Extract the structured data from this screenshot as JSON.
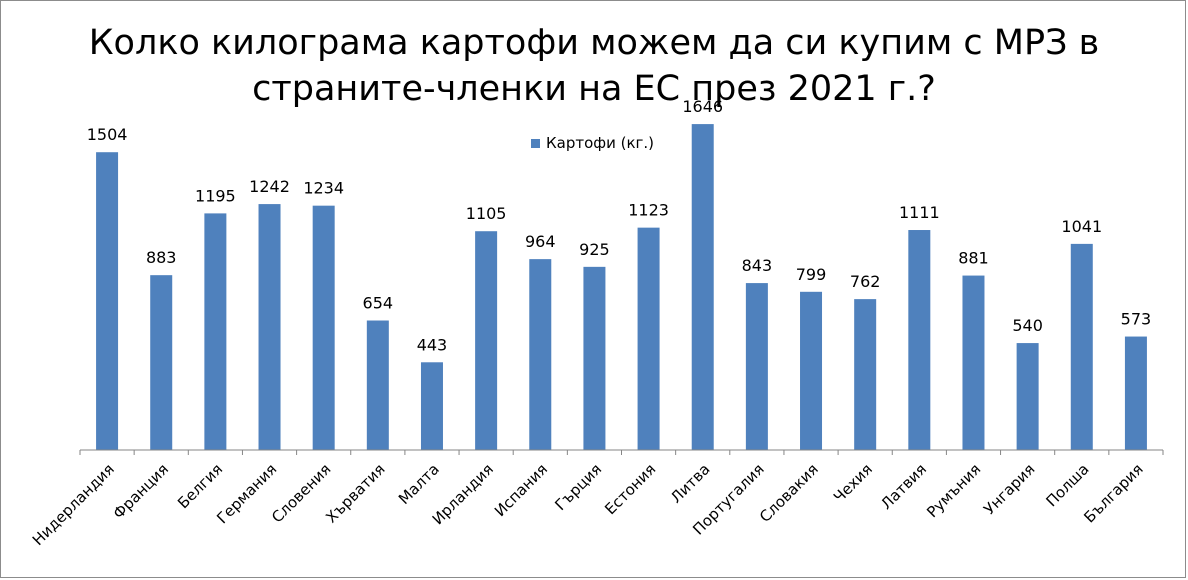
{
  "colors": {
    "bar": "#4f81bd",
    "axis": "#868686",
    "text": "#000000"
  },
  "chart_data": {
    "type": "bar",
    "title": "Колко килограма картофи можем да си купим с МРЗ в\nстраните-членки на ЕС през 2021 г.?",
    "xlabel": "",
    "ylabel": "",
    "legend_position": "top",
    "grid": false,
    "ylim": [
      0,
      1800
    ],
    "categories": [
      "Нидерландия",
      "Франция",
      "Белгия",
      "Германия",
      "Словения",
      "Хърватия",
      "Малта",
      "Ирландия",
      "Испания",
      "Гърция",
      "Естония",
      "Литва",
      "Португалия",
      "Словакия",
      "Чехия",
      "Латвия",
      "Румъния",
      "Унгария",
      "Полша",
      "България"
    ],
    "series": [
      {
        "name": "Картофи (кг.)",
        "values": [
          1504,
          883,
          1195,
          1242,
          1234,
          654,
          443,
          1105,
          964,
          925,
          1123,
          1646,
          843,
          799,
          762,
          1111,
          881,
          540,
          1041,
          573
        ]
      }
    ]
  }
}
